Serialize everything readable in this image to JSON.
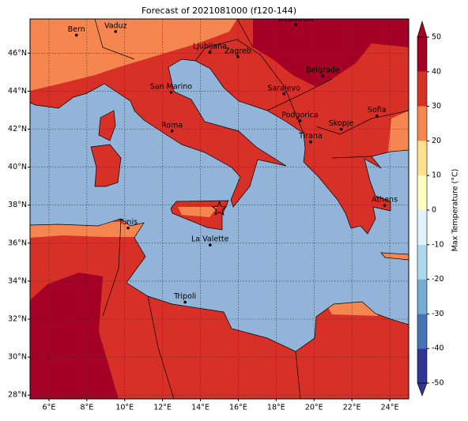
{
  "title": "Forecast of 2021081000 (f120-144)",
  "map": {
    "lon_range": [
      5,
      25
    ],
    "lat_range": [
      27.8,
      47.8
    ],
    "ocean_color": "#92b4d8",
    "graticule": true,
    "lon_ticks": [
      {
        "value": 6,
        "label": "6°E"
      },
      {
        "value": 8,
        "label": "8°E"
      },
      {
        "value": 10,
        "label": "10°E"
      },
      {
        "value": 12,
        "label": "12°E"
      },
      {
        "value": 14,
        "label": "14°E"
      },
      {
        "value": 16,
        "label": "16°E"
      },
      {
        "value": 18,
        "label": "18°E"
      },
      {
        "value": 20,
        "label": "20°E"
      },
      {
        "value": 22,
        "label": "22°E"
      },
      {
        "value": 24,
        "label": "24°E"
      }
    ],
    "lat_ticks": [
      {
        "value": 28,
        "label": "28°N"
      },
      {
        "value": 30,
        "label": "30°N"
      },
      {
        "value": 32,
        "label": "32°N"
      },
      {
        "value": 34,
        "label": "34°N"
      },
      {
        "value": 36,
        "label": "36°N"
      },
      {
        "value": 38,
        "label": "38°N"
      },
      {
        "value": 40,
        "label": "40°N"
      },
      {
        "value": 42,
        "label": "42°N"
      },
      {
        "value": 44,
        "label": "44°N"
      },
      {
        "value": 46,
        "label": "46°N"
      }
    ]
  },
  "cities": [
    {
      "name": "Bern",
      "lon": 7.45,
      "lat": 46.95
    },
    {
      "name": "Vaduz",
      "lon": 9.52,
      "lat": 47.14
    },
    {
      "name": "Budapest",
      "lon": 19.04,
      "lat": 47.5
    },
    {
      "name": "Ljubljana",
      "lon": 14.5,
      "lat": 46.05
    },
    {
      "name": "Zagreb",
      "lon": 15.98,
      "lat": 45.81
    },
    {
      "name": "Belgrade",
      "lon": 20.46,
      "lat": 44.8
    },
    {
      "name": "San Marino",
      "lon": 12.45,
      "lat": 43.94
    },
    {
      "name": "Sarajevo",
      "lon": 18.41,
      "lat": 43.86
    },
    {
      "name": "Sofia",
      "lon": 23.32,
      "lat": 42.7
    },
    {
      "name": "Podgorica",
      "lon": 19.26,
      "lat": 42.44
    },
    {
      "name": "Skopje",
      "lon": 21.43,
      "lat": 42.0
    },
    {
      "name": "Roma",
      "lon": 12.5,
      "lat": 41.9
    },
    {
      "name": "Tirana",
      "lon": 19.82,
      "lat": 41.33
    },
    {
      "name": "Athens",
      "lon": 23.73,
      "lat": 37.98
    },
    {
      "name": "Tunis",
      "lon": 10.18,
      "lat": 36.8
    },
    {
      "name": "La Valette",
      "lon": 14.51,
      "lat": 35.9
    },
    {
      "name": "Tripoli",
      "lon": 13.19,
      "lat": 32.89
    }
  ],
  "marker": {
    "lon": 15.0,
    "lat": 37.8
  },
  "colorbar": {
    "label": "Max Temperature (°C)",
    "lim": [
      -50,
      50
    ],
    "ticks": [
      -50,
      -40,
      -30,
      -20,
      -10,
      0,
      10,
      20,
      30,
      40,
      50
    ],
    "colors": [
      "#313695",
      "#4575b4",
      "#74add1",
      "#abd9e9",
      "#e0f3f8",
      "#ffffbf",
      "#fee090",
      "#f6864f",
      "#d73027",
      "#a50026"
    ]
  }
}
